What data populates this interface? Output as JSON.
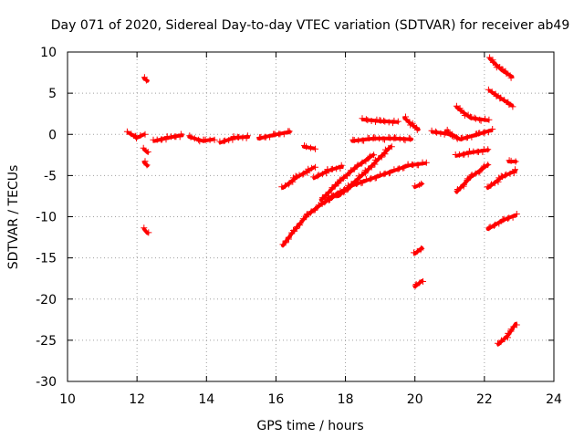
{
  "chart_data": {
    "type": "scatter",
    "title": "Day 071 of 2020, Sidereal Day-to-day VTEC variation (SDTVAR) for receiver ab49",
    "xlabel": "GPS time / hours",
    "ylabel": "SDTVAR / TECUs",
    "xlim": [
      10,
      24
    ],
    "ylim": [
      -30,
      10
    ],
    "xticks": [
      10,
      12,
      14,
      16,
      18,
      20,
      22,
      24
    ],
    "yticks": [
      -30,
      -25,
      -20,
      -15,
      -10,
      -5,
      0,
      5,
      10
    ],
    "grid": true,
    "marker": "+",
    "color": "#ff0000",
    "segments": [
      {
        "x": [
          11.75,
          12.0,
          12.2
        ],
        "y": [
          0.2,
          -0.4,
          0.0
        ]
      },
      {
        "x": [
          12.2,
          12.3
        ],
        "y": [
          6.8,
          6.5
        ]
      },
      {
        "x": [
          12.2,
          12.3
        ],
        "y": [
          -1.8,
          -2.2
        ]
      },
      {
        "x": [
          12.2,
          12.3
        ],
        "y": [
          -3.4,
          -3.8
        ]
      },
      {
        "x": [
          12.2,
          12.3
        ],
        "y": [
          -11.5,
          -12.0
        ]
      },
      {
        "x": [
          12.5,
          12.9,
          13.3
        ],
        "y": [
          -0.8,
          -0.4,
          -0.1
        ]
      },
      {
        "x": [
          13.5,
          13.9,
          14.2
        ],
        "y": [
          -0.3,
          -0.8,
          -0.6
        ]
      },
      {
        "x": [
          14.4,
          14.8,
          15.2
        ],
        "y": [
          -1.0,
          -0.4,
          -0.3
        ]
      },
      {
        "x": [
          15.5,
          15.9,
          16.4
        ],
        "y": [
          -0.5,
          -0.1,
          0.3
        ]
      },
      {
        "x": [
          16.2,
          16.5,
          16.9,
          17.3,
          17.8
        ],
        "y": [
          -13.5,
          -11.8,
          -9.8,
          -8.5,
          -7.2
        ]
      },
      {
        "x": [
          16.2,
          16.6,
          17.1
        ],
        "y": [
          -6.5,
          -5.2,
          -4.0
        ]
      },
      {
        "x": [
          16.8,
          17.1
        ],
        "y": [
          -1.5,
          -1.7
        ]
      },
      {
        "x": [
          17.1,
          17.5,
          17.9
        ],
        "y": [
          -5.3,
          -4.4,
          -3.9
        ]
      },
      {
        "x": [
          17.3,
          17.8,
          18.3,
          18.8
        ],
        "y": [
          -8.0,
          -5.8,
          -4.0,
          -2.5
        ]
      },
      {
        "x": [
          17.5,
          18.2,
          19.0,
          19.8,
          20.3
        ],
        "y": [
          -7.8,
          -6.2,
          -5.0,
          -3.8,
          -3.5
        ]
      },
      {
        "x": [
          17.8,
          18.6,
          19.3
        ],
        "y": [
          -7.5,
          -4.5,
          -1.5
        ]
      },
      {
        "x": [
          18.2,
          18.8,
          19.4,
          19.9
        ],
        "y": [
          -0.8,
          -0.5,
          -0.5,
          -0.6
        ]
      },
      {
        "x": [
          18.5,
          19.0,
          19.5
        ],
        "y": [
          1.8,
          1.6,
          1.5
        ]
      },
      {
        "x": [
          19.7,
          19.9,
          20.1
        ],
        "y": [
          2.0,
          1.2,
          0.6
        ]
      },
      {
        "x": [
          20.0,
          20.2
        ],
        "y": [
          -6.4,
          -6.0
        ]
      },
      {
        "x": [
          20.0,
          20.2
        ],
        "y": [
          -14.5,
          -13.8
        ]
      },
      {
        "x": [
          20.0,
          20.2
        ],
        "y": [
          -18.5,
          -17.8
        ]
      },
      {
        "x": [
          20.5,
          20.9,
          21.2
        ],
        "y": [
          0.3,
          0.1,
          -0.3
        ]
      },
      {
        "x": [
          20.9,
          21.3,
          21.8,
          22.2
        ],
        "y": [
          0.4,
          -0.6,
          0.0,
          0.5
        ]
      },
      {
        "x": [
          21.2,
          21.6,
          22.1
        ],
        "y": [
          3.3,
          2.0,
          1.7
        ]
      },
      {
        "x": [
          21.2,
          21.6,
          22.1
        ],
        "y": [
          -2.6,
          -2.2,
          -1.9
        ]
      },
      {
        "x": [
          21.2,
          21.6,
          22.1
        ],
        "y": [
          -7.0,
          -5.2,
          -3.7
        ]
      },
      {
        "x": [
          22.1,
          22.5,
          22.9
        ],
        "y": [
          -6.5,
          -5.2,
          -4.4
        ]
      },
      {
        "x": [
          22.1,
          22.5,
          22.9
        ],
        "y": [
          -11.5,
          -10.5,
          -9.8
        ]
      },
      {
        "x": [
          22.15,
          22.5,
          22.8
        ],
        "y": [
          9.2,
          7.8,
          7.0
        ]
      },
      {
        "x": [
          22.15,
          22.5,
          22.8
        ],
        "y": [
          5.3,
          4.3,
          3.5
        ]
      },
      {
        "x": [
          22.7,
          22.9
        ],
        "y": [
          -3.3,
          -3.3
        ]
      },
      {
        "x": [
          22.4,
          22.7,
          22.9
        ],
        "y": [
          -25.5,
          -24.3,
          -23.0
        ]
      }
    ]
  }
}
